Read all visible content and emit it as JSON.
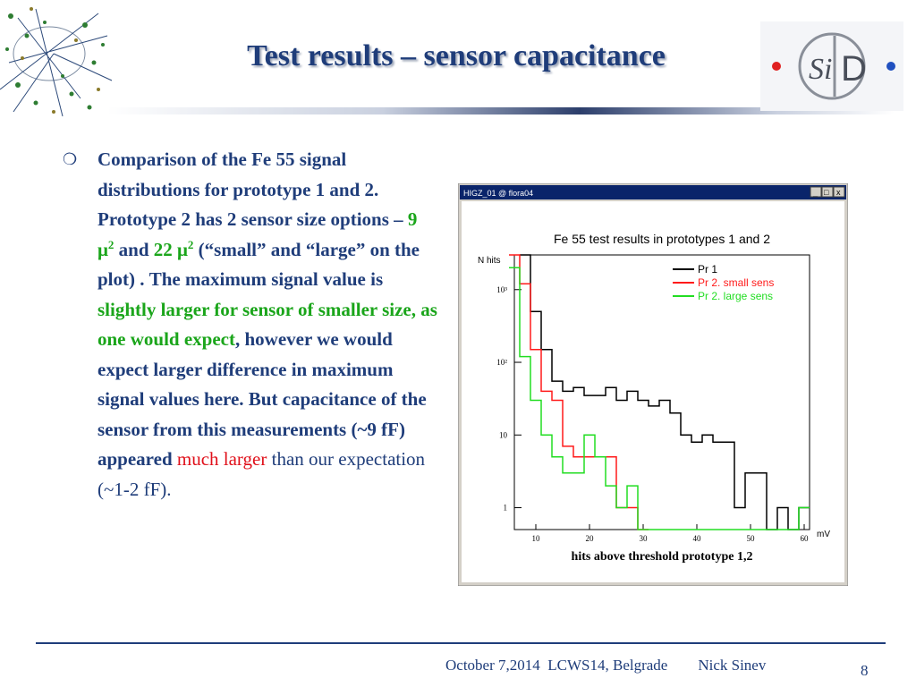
{
  "slide": {
    "title": "Test results – sensor capacitance",
    "logo_text_si": "Si",
    "logo_text_d": "D",
    "bullet_symbol": "❍",
    "body": {
      "p1": "Comparison of the Fe 55 signal distributions  for prototype 1 and 2. Prototype 2 has 2 sensor size options – ",
      "size1": "9 μ",
      "sup": "2",
      "and": " and ",
      "size2": "22 μ",
      "p2": " (“small” and “large” on the plot)  . The maximum signal value is ",
      "green_text": "slightly larger for sensor of smaller size, as one would expect",
      "p3": ", however we would expect larger difference in maximum signal values here. But capacitance of the sensor from this measurements  (~9 fF) appeared ",
      "red_text": "much larger",
      "p4": " than our expectation  (~1-2 fF)."
    },
    "footer": {
      "left": "October 7,2014  LCWS14, Belgrade        Nick Sinev",
      "page": "8"
    }
  },
  "plot_window": {
    "title": "HIGZ_01 @ flora04",
    "controls": [
      "_",
      "□",
      "x"
    ]
  },
  "chart_data": {
    "type": "line",
    "title": "Fe 55 test results in prototypes 1 and 2",
    "ylabel": "N hits",
    "xlabel": "hits above threshold prototype 1,2",
    "x_unit": "mV",
    "y_scale": "log",
    "ylim": [
      0.5,
      3000
    ],
    "xlim": [
      6,
      61
    ],
    "x_ticks": [
      10,
      20,
      30,
      40,
      50,
      60
    ],
    "y_ticks": [
      {
        "value": 1,
        "label": "1"
      },
      {
        "value": 10,
        "label": "10"
      },
      {
        "value": 100,
        "label": "10²"
      },
      {
        "value": 1000,
        "label": "10³"
      }
    ],
    "legend_position": "top-right",
    "series": [
      {
        "name": "Pr 1",
        "color": "#000000",
        "x": [
          8,
          10,
          12,
          14,
          16,
          18,
          20,
          22,
          24,
          26,
          28,
          30,
          32,
          34,
          36,
          38,
          40,
          42,
          44,
          46,
          48,
          50,
          52,
          54,
          56,
          58,
          60
        ],
        "y": [
          3000,
          500,
          150,
          55,
          40,
          45,
          35,
          35,
          45,
          30,
          40,
          30,
          25,
          30,
          20,
          10,
          8,
          10,
          8,
          8,
          1,
          3,
          3,
          0.5,
          1,
          0.5,
          1
        ]
      },
      {
        "name": "Pr 2. small sens",
        "color": "#ff1a1a",
        "x": [
          6,
          8,
          10,
          12,
          14,
          16,
          18,
          20,
          22,
          24,
          26,
          28,
          30
        ],
        "y": [
          3000,
          1200,
          150,
          40,
          30,
          7,
          5,
          5,
          5,
          5,
          1,
          1,
          0.5
        ]
      },
      {
        "name": "Pr 2. large sens",
        "color": "#22dd22",
        "x": [
          6,
          8,
          10,
          12,
          14,
          16,
          18,
          20,
          22,
          24,
          26,
          28,
          30,
          32,
          34,
          36,
          38,
          40,
          42,
          44,
          46,
          48,
          50,
          52,
          54,
          56,
          58,
          60
        ],
        "y": [
          2000,
          120,
          30,
          10,
          5,
          3,
          3,
          10,
          5,
          2,
          1,
          2,
          0.5,
          0.5,
          0.5,
          0.5,
          0.5,
          0.5,
          0.5,
          0.5,
          0.5,
          0.5,
          0.5,
          0.5,
          0.5,
          0.5,
          0.5,
          1
        ]
      }
    ]
  }
}
